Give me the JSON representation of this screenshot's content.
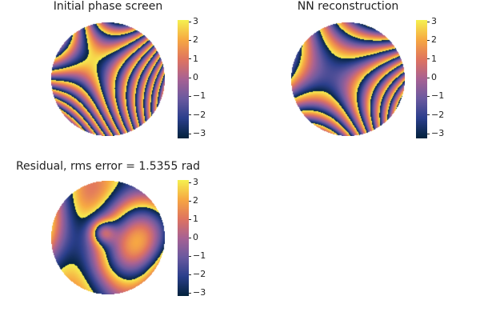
{
  "chart_data": [
    {
      "type": "heatmap",
      "title": "Initial phase screen",
      "colormap": "thermal",
      "clim": [
        -3.14159,
        3.14159
      ],
      "colorbar_ticks": [
        "3",
        "2",
        "1",
        "0",
        "−1",
        "−2",
        "−3"
      ],
      "aperture": "circular",
      "axes": "hidden"
    },
    {
      "type": "heatmap",
      "title": "NN reconstruction",
      "colormap": "thermal",
      "clim": [
        -3.14159,
        3.14159
      ],
      "colorbar_ticks": [
        "3",
        "2",
        "1",
        "0",
        "−1",
        "−2",
        "−3"
      ],
      "aperture": "circular",
      "axes": "hidden"
    },
    {
      "type": "heatmap",
      "title": "Residual, rms error = 1.5355 rad",
      "colormap": "thermal",
      "clim": [
        -3.14159,
        3.14159
      ],
      "colorbar_ticks": [
        "3",
        "2",
        "1",
        "0",
        "−1",
        "−2",
        "−3"
      ],
      "aperture": "circular",
      "axes": "hidden"
    }
  ],
  "colors": {
    "background": "#ffffff",
    "text": "#222222",
    "colormap_stops": [
      "#04233e",
      "#2b3f8c",
      "#6b5aa0",
      "#a86294",
      "#e07460",
      "#f7a843",
      "#f5f050"
    ]
  }
}
